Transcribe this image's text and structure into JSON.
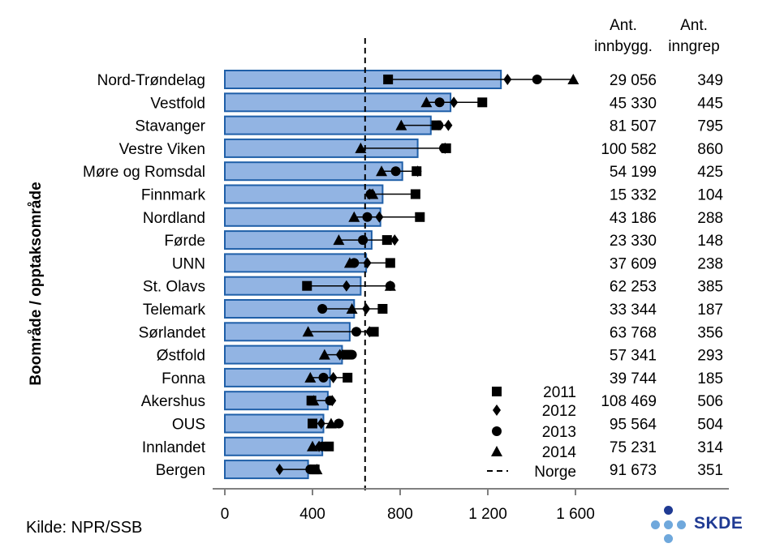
{
  "chart_data": {
    "type": "bar",
    "orientation": "horizontal",
    "ylabel": "Boområde / opptaksområde",
    "categories": [
      "Nord-Trøndelag",
      "Vestfold",
      "Stavanger",
      "Vestre Viken",
      "Møre og Romsdal",
      "Finnmark",
      "Nordland",
      "Førde",
      "UNN",
      "St. Olavs",
      "Telemark",
      "Sørlandet",
      "Østfold",
      "Fonna",
      "Akershus",
      "OUS",
      "Innlandet",
      "Bergen"
    ],
    "series": [
      {
        "name": "bar",
        "values": [
          1260,
          1030,
          940,
          880,
          810,
          720,
          710,
          670,
          645,
          620,
          590,
          570,
          535,
          480,
          470,
          450,
          445,
          380
        ]
      },
      {
        "name": "2011",
        "values": [
          745,
          1175,
          965,
          1010,
          875,
          870,
          890,
          740,
          755,
          375,
          720,
          680,
          555,
          560,
          395,
          400,
          475,
          410
        ]
      },
      {
        "name": "2012",
        "values": [
          1290,
          1045,
          1020,
          1005,
          880,
          660,
          705,
          775,
          650,
          555,
          645,
          660,
          525,
          495,
          490,
          440,
          430,
          250
        ]
      },
      {
        "name": "2013",
        "values": [
          1425,
          980,
          975,
          1000,
          780,
          665,
          650,
          630,
          590,
          755,
          445,
          600,
          580,
          450,
          480,
          520,
          445,
          390
        ]
      },
      {
        "name": "2014",
        "values": [
          1590,
          920,
          805,
          620,
          715,
          675,
          590,
          520,
          570,
          755,
          580,
          380,
          455,
          390,
          405,
          485,
          400,
          420
        ]
      }
    ],
    "norge": 640,
    "xlim": [
      0,
      1600
    ],
    "xticks": [
      0,
      400,
      800,
      1200,
      1600
    ],
    "xtick_labels": [
      "0",
      "400",
      "800",
      "1 200",
      "1 600"
    ],
    "legend": {
      "items": [
        "2011",
        "2012",
        "2013",
        "2014",
        "Norge"
      ],
      "placement": "bottom-right"
    },
    "table_headers": {
      "col1_line1": "Ant.",
      "col1_line2": "innbygg.",
      "col2_line1": "Ant.",
      "col2_line2": "inngrep"
    },
    "table": [
      [
        "29 056",
        "349"
      ],
      [
        "45 330",
        "445"
      ],
      [
        "81 507",
        "795"
      ],
      [
        "100 582",
        "860"
      ],
      [
        "54 199",
        "425"
      ],
      [
        "15 332",
        "104"
      ],
      [
        "43 186",
        "288"
      ],
      [
        "23 330",
        "148"
      ],
      [
        "37 609",
        "238"
      ],
      [
        "62 253",
        "385"
      ],
      [
        "33 344",
        "187"
      ],
      [
        "63 768",
        "356"
      ],
      [
        "57 341",
        "293"
      ],
      [
        "39 744",
        "185"
      ],
      [
        "108 469",
        "506"
      ],
      [
        "95 564",
        "504"
      ],
      [
        "75 231",
        "314"
      ],
      [
        "91 673",
        "351"
      ]
    ],
    "colors": {
      "bar_fill": "#92b4e3",
      "bar_stroke": "#1f5fa8",
      "marker": "#000000"
    }
  },
  "source": "Kilde: NPR/SSB",
  "logo": {
    "text": "SKDE",
    "dot_color_dark": "#1f3a93",
    "dot_color_light": "#6fa8dc"
  }
}
